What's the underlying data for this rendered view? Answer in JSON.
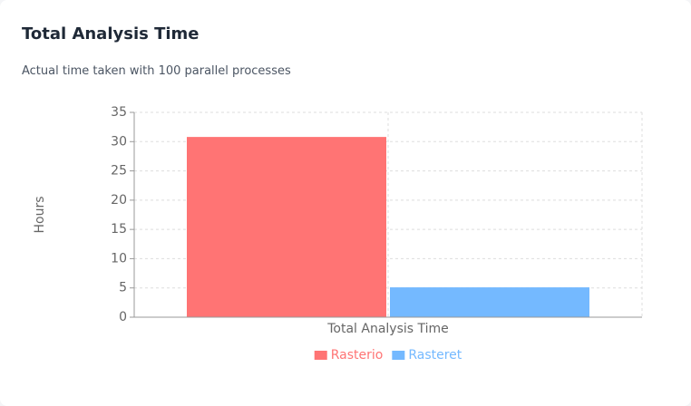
{
  "chart_data": {
    "type": "bar",
    "title": "Total Analysis Time",
    "subtitle": "Actual time taken with 100 parallel processes",
    "y_label": "Hours",
    "categories": [
      "Total Analysis Time"
    ],
    "series": [
      {
        "name": "Rasterio",
        "color": "#ff7474",
        "values": [
          30.8
        ]
      },
      {
        "name": "Rasteret",
        "color": "#74b9ff",
        "values": [
          5.1
        ]
      }
    ],
    "ylim": [
      0,
      35
    ],
    "yticks": [
      0,
      5,
      10,
      15,
      20,
      25,
      30,
      35
    ],
    "grid": true,
    "legend": "bottom"
  }
}
